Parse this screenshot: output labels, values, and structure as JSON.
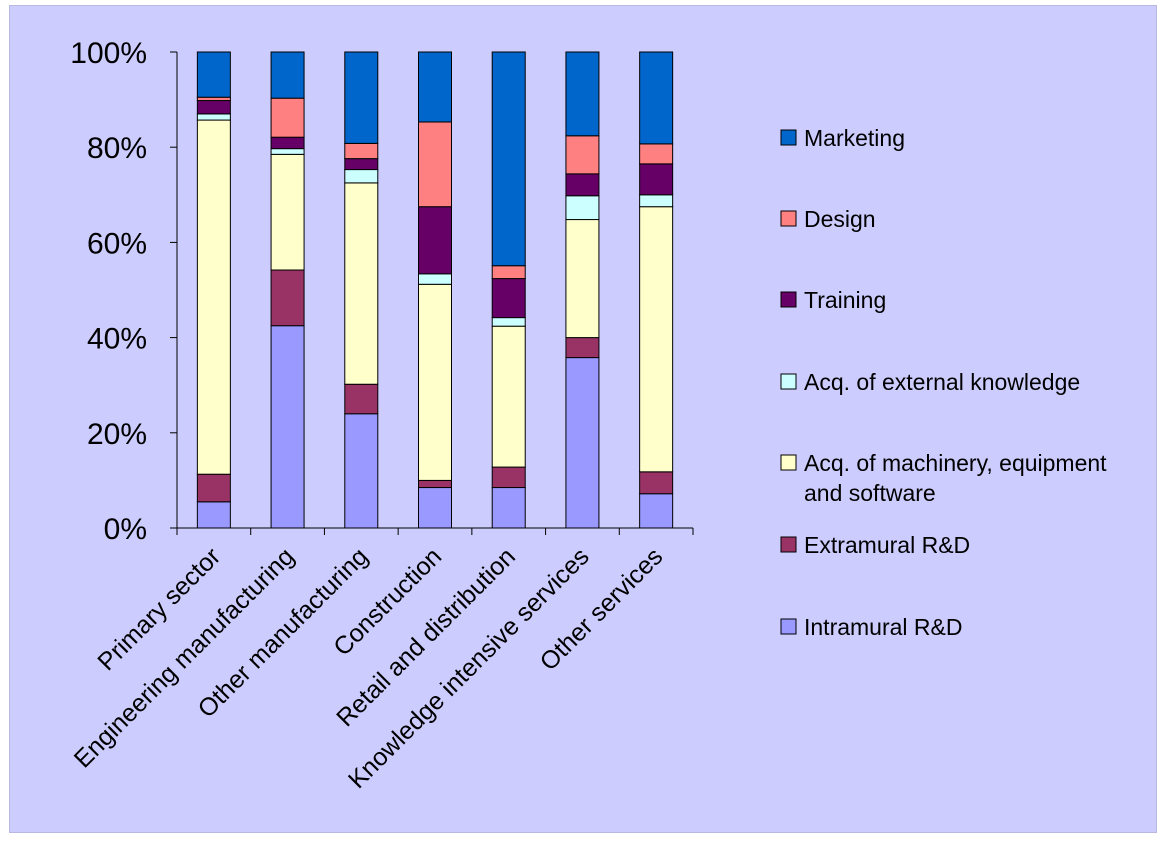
{
  "chart_data": {
    "type": "bar",
    "stacked": true,
    "normalized": true,
    "categories": [
      "Primary sector",
      "Engineering manufacturing",
      "Other manufacturing",
      "Construction",
      "Retail and distribution",
      "Knowledge intensive services",
      "Other services"
    ],
    "series": [
      {
        "name": "Intramural R&D",
        "color": "#9999ff",
        "values": [
          5.5,
          42.5,
          24,
          8.5,
          8.5,
          35.8,
          7.2
        ]
      },
      {
        "name": "Extramural R&D",
        "color": "#993366",
        "values": [
          5.8,
          11.7,
          6.2,
          1.5,
          4.3,
          4.2,
          4.6
        ]
      },
      {
        "name": "Acq. of machinery, equipment and software",
        "color": "#ffffcc",
        "values": [
          74.4,
          24.3,
          42.3,
          41.2,
          29.6,
          24.8,
          55.7
        ]
      },
      {
        "name": "Acq. of external knowledge",
        "color": "#ccffff",
        "values": [
          1.3,
          1.2,
          2.8,
          2.2,
          1.8,
          5,
          2.5
        ]
      },
      {
        "name": "Training",
        "color": "#660066",
        "values": [
          2.8,
          2.4,
          2.3,
          14.1,
          8.2,
          4.6,
          6.5
        ]
      },
      {
        "name": "Design",
        "color": "#ff8080",
        "values": [
          0.7,
          8.2,
          3.2,
          17.8,
          2.7,
          8,
          4.2
        ]
      },
      {
        "name": "Marketing",
        "color": "#0066cc",
        "values": [
          9.5,
          9.7,
          19.2,
          14.7,
          44.9,
          17.6,
          19.3
        ]
      }
    ],
    "legend_order": [
      "Marketing",
      "Design",
      "Training",
      "Acq. of external knowledge",
      "Acq. of machinery, equipment and software",
      "Extramural R&D",
      "Intramural R&D"
    ],
    "y_ticks": [
      "0%",
      "20%",
      "40%",
      "60%",
      "80%",
      "100%"
    ],
    "ylim": [
      0,
      100
    ],
    "legend_position": "right",
    "grid": false
  }
}
